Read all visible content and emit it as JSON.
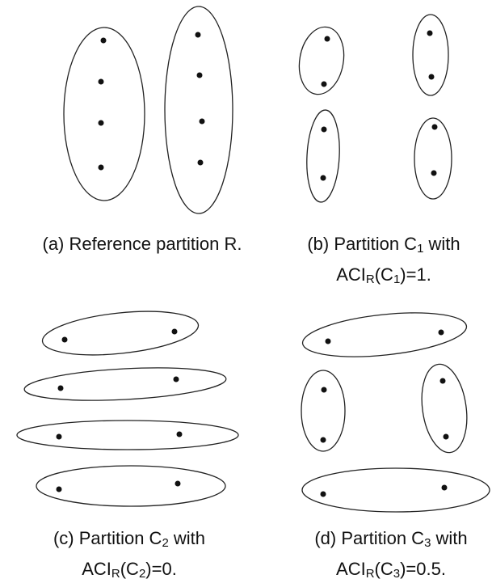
{
  "captions": [
    {
      "lines": [
        [
          {
            "text": "(a) Reference partition R."
          }
        ]
      ]
    },
    {
      "lines": [
        [
          {
            "text": "(b) Partition C"
          },
          {
            "text": "1",
            "sub": true
          },
          {
            "text": " with"
          }
        ],
        [
          {
            "text": "ACI"
          },
          {
            "text": "R",
            "sub": true
          },
          {
            "text": "(C"
          },
          {
            "text": "1",
            "sub": true
          },
          {
            "text": ")=1."
          }
        ]
      ]
    },
    {
      "lines": [
        [
          {
            "text": "(c) Partition C"
          },
          {
            "text": "2",
            "sub": true
          },
          {
            "text": " with"
          }
        ],
        [
          {
            "text": "ACI"
          },
          {
            "text": "R",
            "sub": true
          },
          {
            "text": "(C"
          },
          {
            "text": "2",
            "sub": true
          },
          {
            "text": ")=0."
          }
        ]
      ]
    },
    {
      "lines": [
        [
          {
            "text": "(d) Partition C"
          },
          {
            "text": "3",
            "sub": true
          },
          {
            "text": " with"
          }
        ],
        [
          {
            "text": "ACI"
          },
          {
            "text": "R",
            "sub": true
          },
          {
            "text": "(C"
          },
          {
            "text": "3",
            "sub": true
          },
          {
            "text": ")=0.5."
          }
        ]
      ]
    }
  ]
}
